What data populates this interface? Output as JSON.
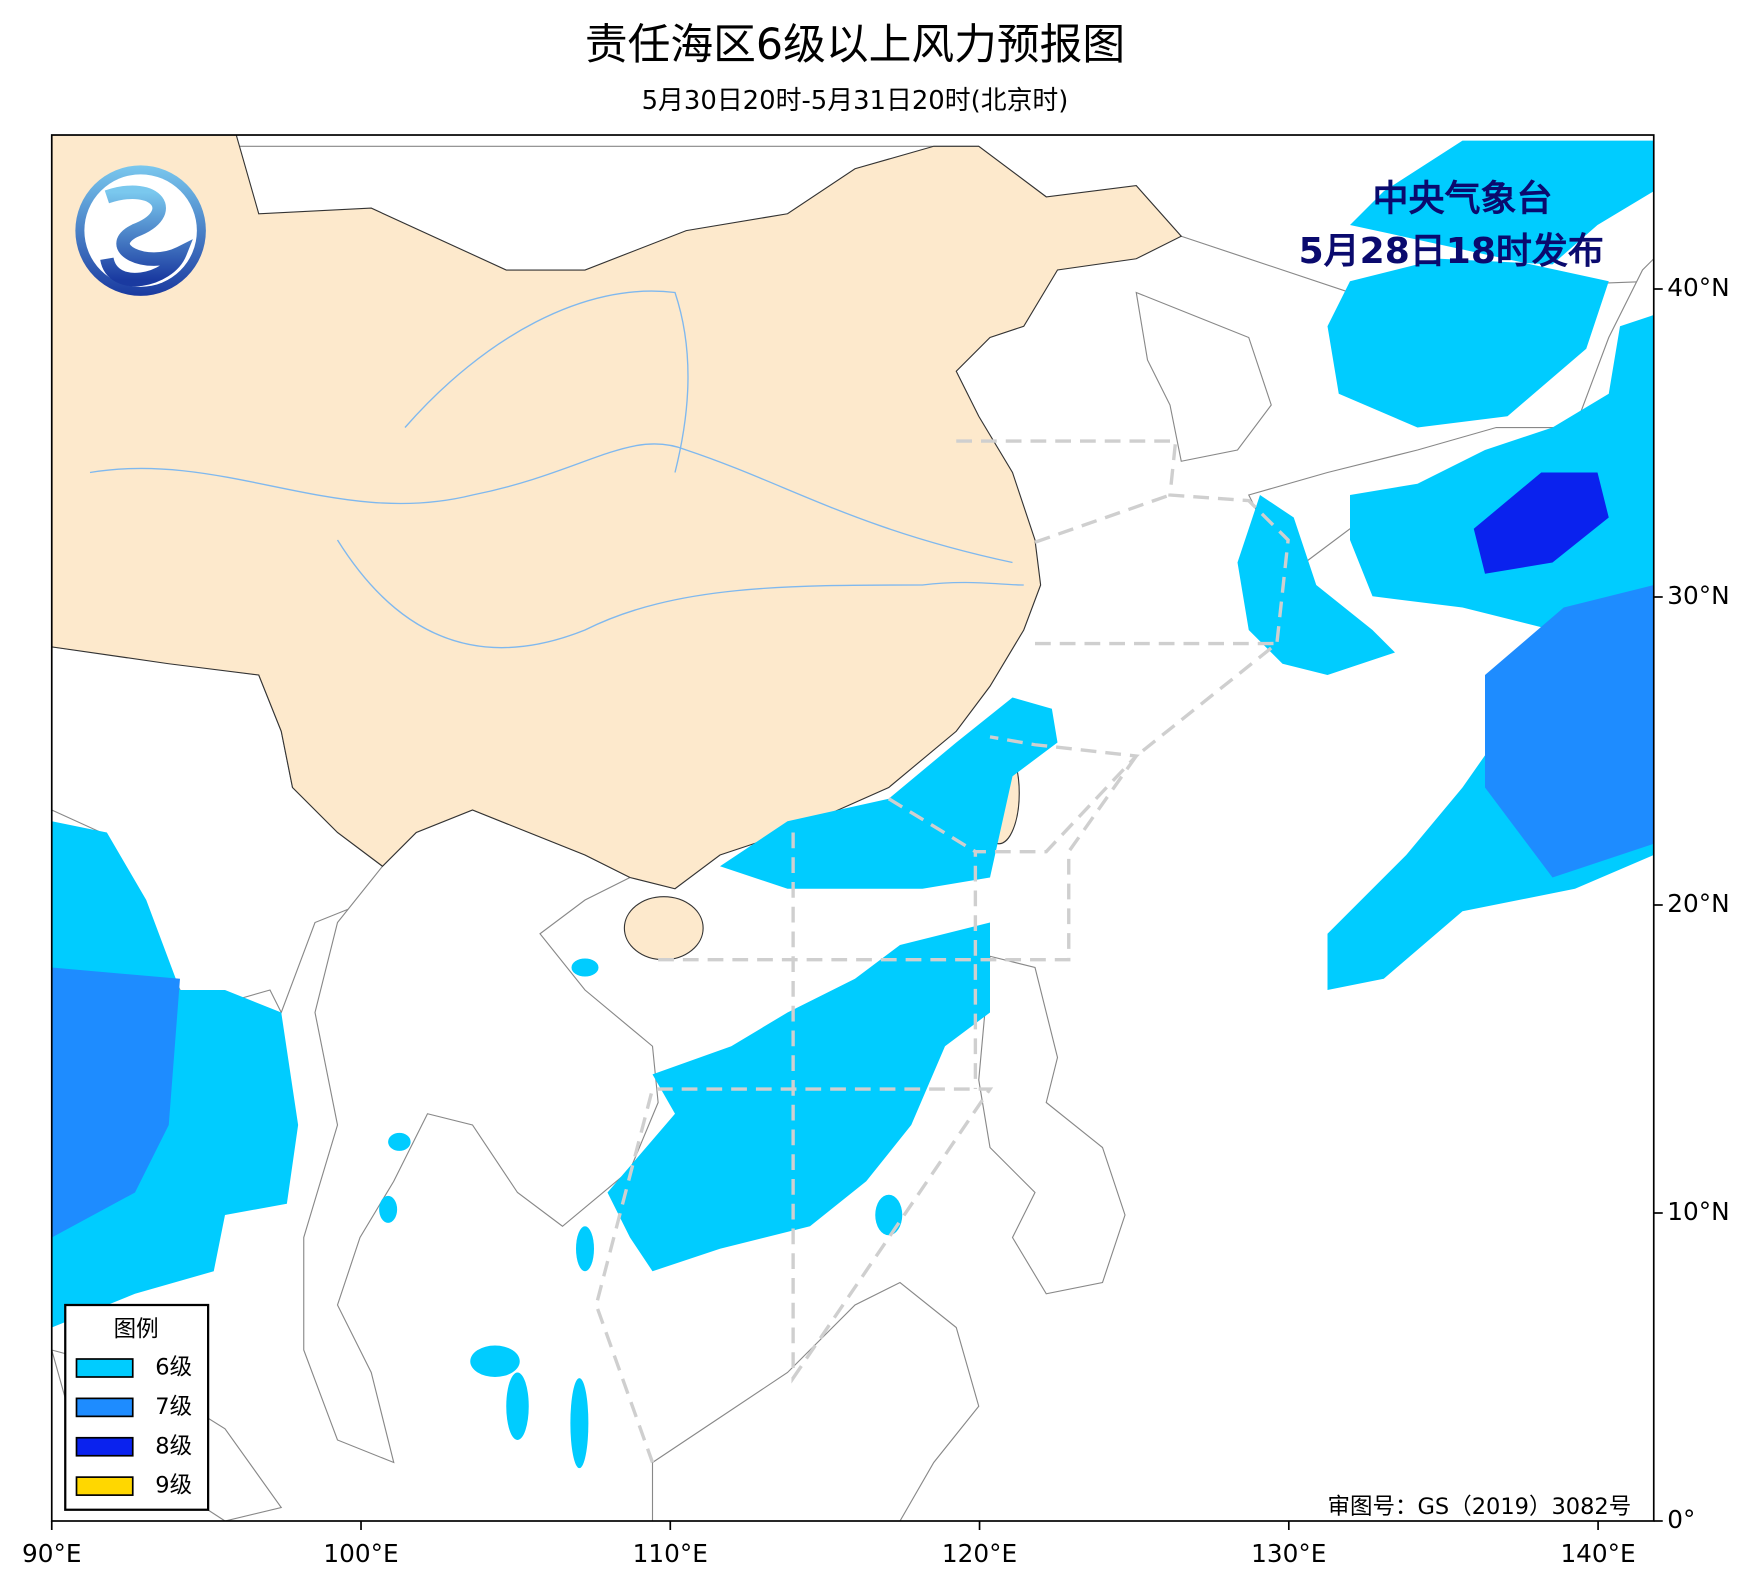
{
  "header": {
    "title": "责任海区6级以上风力预报图",
    "subtitle": "5月30日20时-5月31日20时(北京时)"
  },
  "issuer": {
    "name": "中央气象台",
    "time": "5月28日18时发布"
  },
  "legend": {
    "title": "图例",
    "items": [
      {
        "label": "6级",
        "color": "#00ccff"
      },
      {
        "label": "7级",
        "color": "#1e8cff"
      },
      {
        "label": "8级",
        "color": "#0a22ee"
      },
      {
        "label": "9级",
        "color": "#ffd700"
      }
    ]
  },
  "map": {
    "xlim": [
      90,
      141.8
    ],
    "ylim": [
      0,
      45
    ],
    "xticks": [
      {
        "value": 90,
        "label": "90°E"
      },
      {
        "value": 100,
        "label": "100°E"
      },
      {
        "value": 110,
        "label": "110°E"
      },
      {
        "value": 120,
        "label": "120°E"
      },
      {
        "value": 130,
        "label": "130°E"
      },
      {
        "value": 140,
        "label": "140°E"
      }
    ],
    "yticks": [
      {
        "value": 0,
        "label": "0°"
      },
      {
        "value": 10,
        "label": "10°N"
      },
      {
        "value": 20,
        "label": "20°N"
      },
      {
        "value": 30,
        "label": "30°N"
      },
      {
        "value": 40,
        "label": "40°N"
      }
    ]
  },
  "footer": {
    "approval": "审图号：GS（2019）3082号"
  }
}
